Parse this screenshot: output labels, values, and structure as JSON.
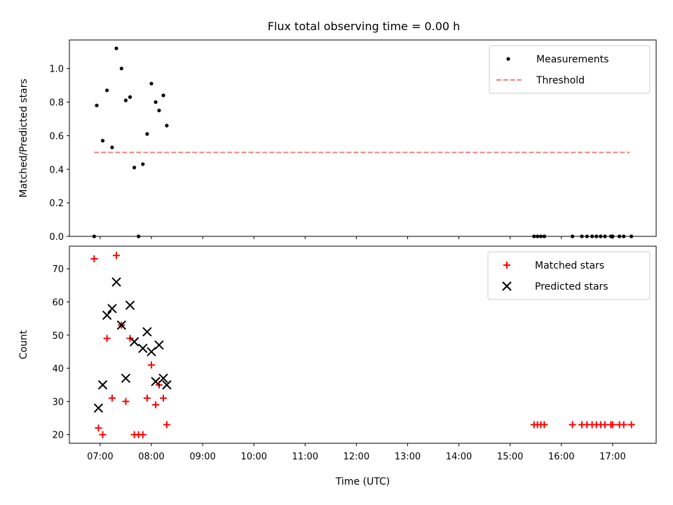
{
  "title": "Flux total observing time = 0.00 h",
  "chart_data": [
    {
      "type": "scatter",
      "panel": "top",
      "ylabel": "Matched/Predicted stars",
      "xlabel": "",
      "xlim": [
        "06:24",
        "17:51"
      ],
      "ylim": [
        0,
        1.17
      ],
      "y_ticks": [
        0.0,
        0.2,
        0.4,
        0.6,
        0.8,
        1.0
      ],
      "y_tick_labels": [
        "0.0",
        "0.2",
        "0.4",
        "0.6",
        "0.8",
        "1.0"
      ],
      "grid": false,
      "legend_position": "top-right",
      "series": [
        {
          "name": "Measurements",
          "marker": "dot",
          "color": "#000000",
          "points": [
            {
              "x": "06:53",
              "y": 0.0
            },
            {
              "x": "06:56",
              "y": 0.78
            },
            {
              "x": "07:03",
              "y": 0.57
            },
            {
              "x": "07:08",
              "y": 0.87
            },
            {
              "x": "07:14",
              "y": 0.53
            },
            {
              "x": "07:19",
              "y": 1.12
            },
            {
              "x": "07:25",
              "y": 1.0
            },
            {
              "x": "07:30",
              "y": 0.81
            },
            {
              "x": "07:35",
              "y": 0.83
            },
            {
              "x": "07:40",
              "y": 0.41
            },
            {
              "x": "07:45",
              "y": 0.0
            },
            {
              "x": "07:50",
              "y": 0.43
            },
            {
              "x": "07:55",
              "y": 0.61
            },
            {
              "x": "08:00",
              "y": 0.91
            },
            {
              "x": "08:05",
              "y": 0.8
            },
            {
              "x": "08:09",
              "y": 0.75
            },
            {
              "x": "08:14",
              "y": 0.84
            },
            {
              "x": "08:18",
              "y": 0.66
            },
            {
              "x": "15:28",
              "y": 0.0
            },
            {
              "x": "15:32",
              "y": 0.0
            },
            {
              "x": "15:36",
              "y": 0.0
            },
            {
              "x": "15:40",
              "y": 0.0
            },
            {
              "x": "16:13",
              "y": 0.0
            },
            {
              "x": "16:24",
              "y": 0.0
            },
            {
              "x": "16:30",
              "y": 0.0
            },
            {
              "x": "16:36",
              "y": 0.0
            },
            {
              "x": "16:41",
              "y": 0.0
            },
            {
              "x": "16:46",
              "y": 0.0
            },
            {
              "x": "16:51",
              "y": 0.0
            },
            {
              "x": "16:58",
              "y": 0.0
            },
            {
              "x": "17:00",
              "y": 0.0
            },
            {
              "x": "17:08",
              "y": 0.0
            },
            {
              "x": "17:13",
              "y": 0.0
            },
            {
              "x": "17:22",
              "y": 0.0
            }
          ]
        },
        {
          "name": "Threshold",
          "type": "line",
          "style": "dashed",
          "color": "#f08080",
          "points": [
            {
              "x": "06:53",
              "y": 0.5
            },
            {
              "x": "17:20",
              "y": 0.5
            }
          ]
        }
      ]
    },
    {
      "type": "scatter",
      "panel": "bottom",
      "ylabel": "Count",
      "xlabel": "Time (UTC)",
      "xlim": [
        "06:24",
        "17:51"
      ],
      "ylim": [
        17.4,
        76.8
      ],
      "y_ticks": [
        20,
        30,
        40,
        50,
        60,
        70
      ],
      "y_tick_labels": [
        "20",
        "30",
        "40",
        "50",
        "60",
        "70"
      ],
      "x_ticks": [
        "07:00",
        "08:00",
        "09:00",
        "10:00",
        "11:00",
        "12:00",
        "13:00",
        "14:00",
        "15:00",
        "16:00",
        "17:00"
      ],
      "x_tick_labels": [
        "07:00",
        "08:00",
        "09:00",
        "10:00",
        "11:00",
        "12:00",
        "13:00",
        "14:00",
        "15:00",
        "16:00",
        "17:00"
      ],
      "grid": false,
      "legend_position": "top-right",
      "series": [
        {
          "name": "Matched stars",
          "marker": "plus",
          "color": "#ff0000",
          "points": [
            {
              "x": "06:53",
              "y": 73
            },
            {
              "x": "06:58",
              "y": 22
            },
            {
              "x": "07:03",
              "y": 20
            },
            {
              "x": "07:08",
              "y": 49
            },
            {
              "x": "07:14",
              "y": 31
            },
            {
              "x": "07:19",
              "y": 74
            },
            {
              "x": "07:25",
              "y": 53
            },
            {
              "x": "07:30",
              "y": 30
            },
            {
              "x": "07:35",
              "y": 49
            },
            {
              "x": "07:40",
              "y": 20
            },
            {
              "x": "07:45",
              "y": 20
            },
            {
              "x": "07:50",
              "y": 20
            },
            {
              "x": "07:55",
              "y": 31
            },
            {
              "x": "08:00",
              "y": 41
            },
            {
              "x": "08:05",
              "y": 29
            },
            {
              "x": "08:09",
              "y": 35
            },
            {
              "x": "08:14",
              "y": 31
            },
            {
              "x": "08:18",
              "y": 23
            },
            {
              "x": "15:28",
              "y": 23
            },
            {
              "x": "15:32",
              "y": 23
            },
            {
              "x": "15:36",
              "y": 23
            },
            {
              "x": "15:40",
              "y": 23
            },
            {
              "x": "16:13",
              "y": 23
            },
            {
              "x": "16:24",
              "y": 23
            },
            {
              "x": "16:30",
              "y": 23
            },
            {
              "x": "16:36",
              "y": 23
            },
            {
              "x": "16:41",
              "y": 23
            },
            {
              "x": "16:46",
              "y": 23
            },
            {
              "x": "16:51",
              "y": 23
            },
            {
              "x": "16:58",
              "y": 23
            },
            {
              "x": "17:00",
              "y": 23
            },
            {
              "x": "17:08",
              "y": 23
            },
            {
              "x": "17:13",
              "y": 23
            },
            {
              "x": "17:22",
              "y": 23
            }
          ]
        },
        {
          "name": "Predicted stars",
          "marker": "x",
          "color": "#000000",
          "points": [
            {
              "x": "06:58",
              "y": 28
            },
            {
              "x": "07:03",
              "y": 35
            },
            {
              "x": "07:08",
              "y": 56
            },
            {
              "x": "07:14",
              "y": 58
            },
            {
              "x": "07:19",
              "y": 66
            },
            {
              "x": "07:25",
              "y": 53
            },
            {
              "x": "07:30",
              "y": 37
            },
            {
              "x": "07:35",
              "y": 59
            },
            {
              "x": "07:40",
              "y": 48
            },
            {
              "x": "07:50",
              "y": 46
            },
            {
              "x": "07:55",
              "y": 51
            },
            {
              "x": "08:00",
              "y": 45
            },
            {
              "x": "08:05",
              "y": 36
            },
            {
              "x": "08:09",
              "y": 47
            },
            {
              "x": "08:14",
              "y": 37
            },
            {
              "x": "08:18",
              "y": 35
            }
          ]
        }
      ]
    }
  ]
}
